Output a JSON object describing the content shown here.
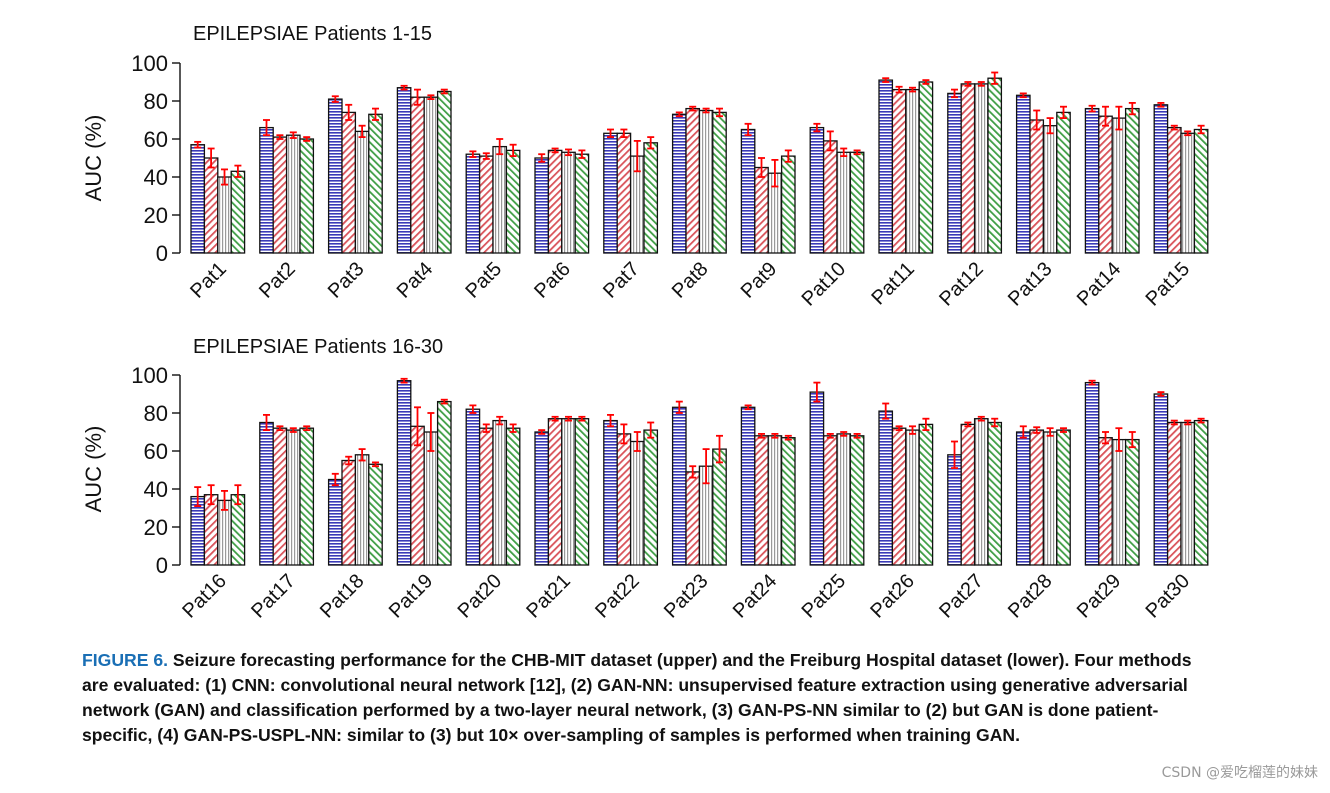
{
  "colors": {
    "cnn": "#3a3ab8",
    "gan_nn": "#d9535a",
    "gan_ps_nn": "#9a9a9a",
    "gan_ps_uspl_nn": "#3f9e45",
    "error_bar": "#ff0000"
  },
  "chart_data": [
    {
      "type": "bar",
      "title": "EPILEPSIAE Patients 1-15",
      "ylabel": "AUC (%)",
      "xlabel": "",
      "ylim": [
        0,
        100
      ],
      "yticks": [
        0,
        20,
        40,
        60,
        80,
        100
      ],
      "categories": [
        "Pat1",
        "Pat2",
        "Pat3",
        "Pat4",
        "Pat5",
        "Pat6",
        "Pat7",
        "Pat8",
        "Pat9",
        "Pat10",
        "Pat11",
        "Pat12",
        "Pat13",
        "Pat14",
        "Pat15"
      ],
      "series": [
        {
          "name": "CNN",
          "values": [
            57,
            66,
            81,
            87,
            52,
            50,
            63,
            73,
            65,
            66,
            91,
            84,
            83,
            76,
            78
          ],
          "errors": [
            1.5,
            4,
            1.5,
            1,
            1.5,
            2,
            2,
            1,
            3,
            2,
            1,
            2,
            1,
            1.5,
            1
          ]
        },
        {
          "name": "GAN-NN",
          "values": [
            50,
            61,
            74,
            82,
            51,
            54,
            63,
            76,
            45,
            59,
            86,
            89,
            70,
            72,
            66
          ],
          "errors": [
            5,
            1,
            4,
            4,
            1.5,
            1,
            2,
            1,
            5,
            5,
            1.5,
            1,
            5,
            5,
            1
          ]
        },
        {
          "name": "GAN-PS-NN",
          "values": [
            40,
            62,
            64,
            82,
            56,
            53,
            51,
            75,
            42,
            53,
            86,
            89,
            67,
            71,
            63
          ],
          "errors": [
            4,
            1.5,
            3,
            1,
            4,
            1.5,
            8,
            1,
            7,
            2,
            1,
            1,
            4,
            6,
            1
          ]
        },
        {
          "name": "GAN-PS-USPL-NN",
          "values": [
            43,
            60,
            73,
            85,
            54,
            52,
            58,
            74,
            51,
            53,
            90,
            92,
            74,
            76,
            65
          ],
          "errors": [
            3,
            1,
            3,
            1,
            3,
            2,
            3,
            2,
            3,
            1,
            1,
            3,
            3,
            3,
            2
          ]
        }
      ]
    },
    {
      "type": "bar",
      "title": "EPILEPSIAE Patients 16-30",
      "ylabel": "AUC (%)",
      "xlabel": "",
      "ylim": [
        0,
        100
      ],
      "yticks": [
        0,
        20,
        40,
        60,
        80,
        100
      ],
      "categories": [
        "Pat16",
        "Pat17",
        "Pat18",
        "Pat19",
        "Pat20",
        "Pat21",
        "Pat22",
        "Pat23",
        "Pat24",
        "Pat25",
        "Pat26",
        "Pat27",
        "Pat28",
        "Pat29",
        "Pat30"
      ],
      "series": [
        {
          "name": "CNN",
          "values": [
            36,
            75,
            45,
            97,
            82,
            70,
            76,
            83,
            83,
            91,
            81,
            58,
            70,
            96,
            90
          ],
          "errors": [
            5,
            4,
            3,
            1,
            2,
            1,
            3,
            3,
            1,
            5,
            4,
            7,
            3,
            1,
            1
          ]
        },
        {
          "name": "GAN-NN",
          "values": [
            37,
            72,
            55,
            73,
            72,
            77,
            69,
            49,
            68,
            68,
            72,
            74,
            71,
            67,
            75
          ],
          "errors": [
            5,
            1,
            2,
            10,
            2,
            1,
            5,
            3,
            1,
            1,
            1,
            1,
            1.5,
            3,
            1
          ]
        },
        {
          "name": "GAN-PS-NN",
          "values": [
            34,
            71,
            58,
            70,
            76,
            77,
            65,
            52,
            68,
            69,
            71,
            77,
            70,
            66,
            75
          ],
          "errors": [
            5,
            1,
            3,
            10,
            2,
            1,
            5,
            9,
            1,
            1,
            2,
            1,
            2,
            6,
            1
          ]
        },
        {
          "name": "GAN-PS-USPL-NN",
          "values": [
            37,
            72,
            53,
            86,
            72,
            77,
            71,
            61,
            67,
            68,
            74,
            75,
            71,
            66,
            76
          ],
          "errors": [
            5,
            1,
            1,
            1,
            2,
            1,
            4,
            7,
            1,
            1,
            3,
            2,
            1,
            4,
            1
          ]
        }
      ]
    }
  ],
  "caption": {
    "label": "FIGURE 6.",
    "text": "Seizure forecasting performance for the CHB-MIT dataset (upper) and the Freiburg Hospital dataset (lower). Four methods are evaluated: (1) CNN: convolutional neural network [12], (2) GAN-NN: unsupervised feature extraction using generative adversarial network (GAN) and classification performed by a two-layer neural network, (3) GAN-PS-NN similar to (2) but GAN is done patient-specific, (4) GAN-PS-USPL-NN: similar to (3) but 10× over-sampling of samples is performed when training GAN."
  },
  "watermark": "CSDN @爱吃榴莲的妹妹"
}
